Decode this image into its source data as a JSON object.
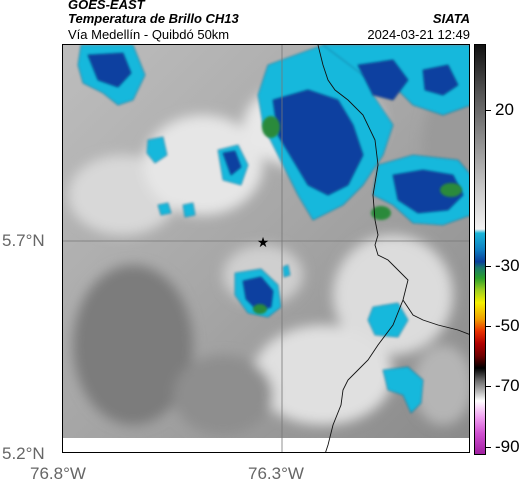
{
  "header": {
    "satellite": "GOES-EAST",
    "product": "Temperatura de Brillo CH13",
    "route": "Vía Medellín - Quibdó 50km",
    "agency": "SIATA",
    "datetime": "2024-03-21 12:49"
  },
  "axes": {
    "lat_labels": [
      "5.7°N",
      "5.2°N"
    ],
    "lon_labels": [
      "76.8°W",
      "76.3°W"
    ]
  },
  "colorbar": {
    "labels": [
      "20",
      "-30",
      "-50",
      "-70",
      "-90"
    ]
  },
  "marker": {
    "icon": "star-icon"
  }
}
